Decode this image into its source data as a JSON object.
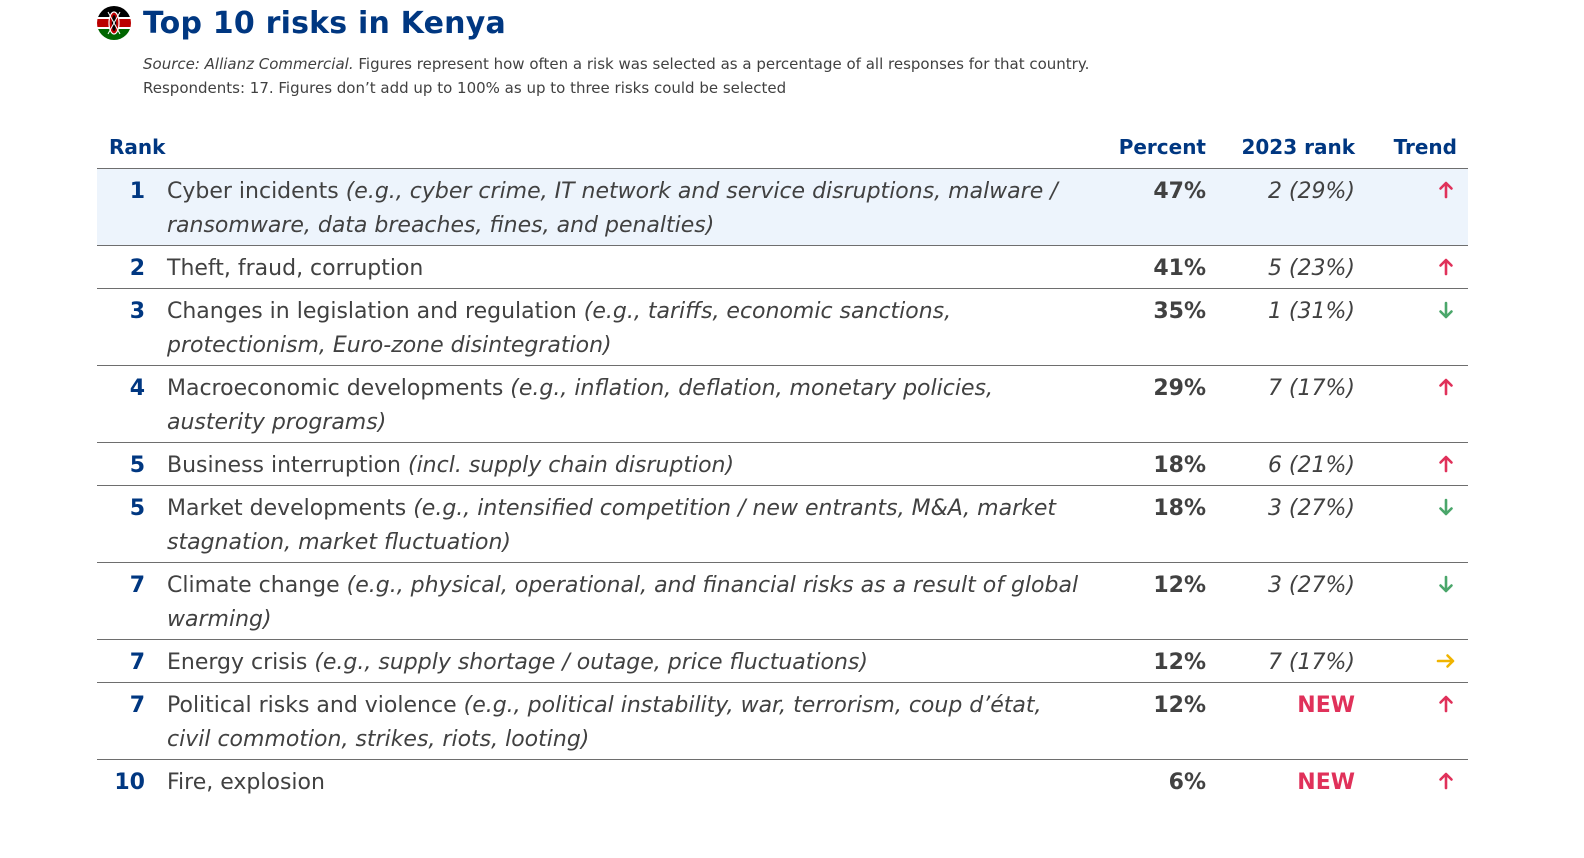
{
  "header": {
    "title": "Top 10 risks in Kenya",
    "source_label": "Source: Allianz Commercial.",
    "source_line1": "Figures represent how often a risk was selected as a percentage of all responses for that country.",
    "source_line2": "Respondents: 17. Figures don’t add up to 100% as up to three risks could be selected",
    "flag_icon": "kenya-flag-icon"
  },
  "table": {
    "columns": {
      "rank": "Rank",
      "percent": "Percent",
      "prev_rank": "2023 rank",
      "trend": "Trend"
    },
    "rows": [
      {
        "rank": "1",
        "risk": "Cyber incidents",
        "detail": "(e.g., cyber crime, IT network and service disruptions, malware / ransomware, data breaches, fines, and penalties)",
        "percent": "47%",
        "prev": "2 (29%)",
        "trend": "up"
      },
      {
        "rank": "2",
        "risk": "Theft, fraud, corruption",
        "detail": "",
        "percent": "41%",
        "prev": "5 (23%)",
        "trend": "up"
      },
      {
        "rank": "3",
        "risk": "Changes in legislation and regulation",
        "detail": "(e.g., tariffs, economic sanctions, protectionism, Euro-zone disintegration)",
        "percent": "35%",
        "prev": "1 (31%)",
        "trend": "down"
      },
      {
        "rank": "4",
        "risk": "Macroeconomic developments",
        "detail": "(e.g., inflation, deflation, monetary policies, austerity programs)",
        "percent": "29%",
        "prev": "7 (17%)",
        "trend": "up"
      },
      {
        "rank": "5",
        "risk": "Business interruption",
        "detail": "(incl. supply chain disruption)",
        "percent": "18%",
        "prev": "6 (21%)",
        "trend": "up"
      },
      {
        "rank": "5",
        "risk": "Market developments",
        "detail": "(e.g., intensified competition / new entrants, M&A, market stagnation, market fluctuation)",
        "percent": "18%",
        "prev": "3 (27%)",
        "trend": "down"
      },
      {
        "rank": "7",
        "risk": "Climate change",
        "detail": "(e.g., physical, operational, and financial risks as a result of global warming)",
        "percent": "12%",
        "prev": "3 (27%)",
        "trend": "down"
      },
      {
        "rank": "7",
        "risk": "Energy crisis",
        "detail": "(e.g., supply shortage / outage, price fluctuations)",
        "percent": "12%",
        "prev": "7 (17%)",
        "trend": "flat"
      },
      {
        "rank": "7",
        "risk": "Political risks and violence",
        "detail": "(e.g., political instability, war, terrorism, coup d’état, civil commotion, strikes, riots, looting)",
        "percent": "12%",
        "prev": "NEW",
        "trend": "up"
      },
      {
        "rank": "10",
        "risk": "Fire, explosion",
        "detail": "",
        "percent": "6%",
        "prev": "NEW",
        "trend": "up"
      }
    ]
  },
  "colors": {
    "brand_blue": "#003781",
    "up": "#e0315a",
    "down": "#4aa66a",
    "flat": "#f0b400",
    "new": "#e0315a",
    "highlight_row": "#edf4fc"
  }
}
